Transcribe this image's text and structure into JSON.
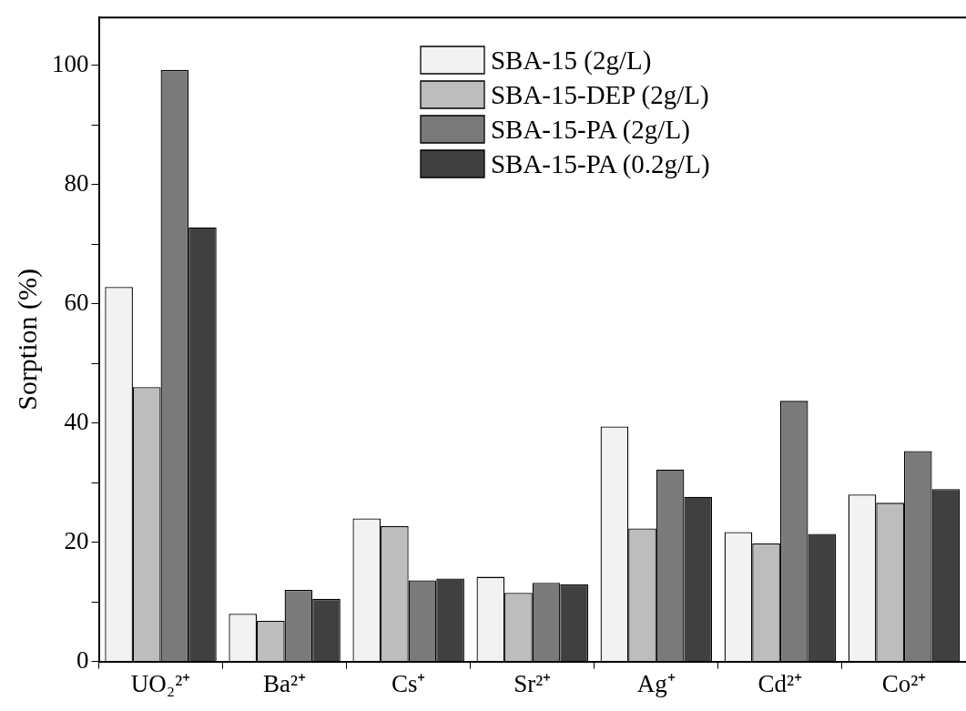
{
  "chart_data": {
    "type": "bar",
    "ylabel": "Sorption (%)",
    "categories": [
      "UO₂²⁺",
      "Ba²⁺",
      "Cs⁺",
      "Sr²⁺",
      "Ag⁺",
      "Cd²⁺",
      "Co²⁺"
    ],
    "series": [
      {
        "name": "SBA-15 (2g/L)",
        "color": "#f2f2f2",
        "values": [
          62.8,
          8.0,
          24.0,
          14.2,
          39.4,
          21.7,
          28.0
        ]
      },
      {
        "name": "SBA-15-DEP (2g/L)",
        "color": "#bdbdbd",
        "values": [
          46.0,
          6.8,
          22.7,
          11.5,
          22.3,
          19.8,
          26.6
        ]
      },
      {
        "name": "SBA-15-PA (2g/L)",
        "color": "#7a7a7a",
        "values": [
          99.2,
          12.0,
          13.6,
          13.2,
          32.2,
          43.7,
          35.3
        ]
      },
      {
        "name": "SBA-15-PA (0.2g/L)",
        "color": "#404040",
        "values": [
          72.8,
          10.5,
          13.9,
          12.9,
          27.6,
          21.4,
          28.9
        ]
      }
    ],
    "ylim": [
      0,
      108
    ],
    "yticks": [
      0,
      {
        "value": 10,
        "label": null
      },
      20,
      {
        "value": 30,
        "label": null
      },
      40,
      {
        "value": 50,
        "label": null
      },
      60,
      {
        "value": 70,
        "label": null
      },
      80,
      {
        "value": 90,
        "label": null
      },
      100
    ],
    "grid": false,
    "legend": "top"
  }
}
